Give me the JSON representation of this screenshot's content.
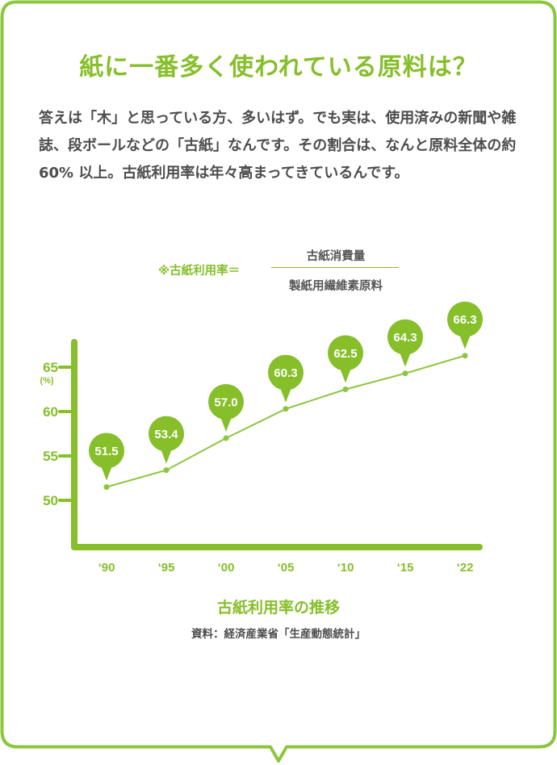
{
  "heading": "紙に一番多く使われている原料は？",
  "body_text": "答えは「木」と思っている方、多いはず。でも実は、使用済みの新聞や雑誌、段ボールなどの「古紙」なんです。その割合は、なんと原料全体の約 60% 以上。古紙利用率は年々高まってきているんです。",
  "formula": {
    "label": "※古紙利用率＝",
    "numerator": "古紙消費量",
    "denominator": "製紙用繊維素原料"
  },
  "caption": "古紙利用率の推移",
  "source": "資料：経済産業省「生産動態統計」",
  "colors": {
    "accent": "#86bf2a",
    "text": "#4d4d4d",
    "line": "#8cc63f"
  },
  "chart_data": {
    "type": "line",
    "title": "古紙利用率の推移",
    "categories": [
      "‘90",
      "‘95",
      "‘00",
      "‘05",
      "‘10",
      "‘15",
      "‘22"
    ],
    "values": [
      51.5,
      53.4,
      57.0,
      60.3,
      62.5,
      64.3,
      66.3
    ],
    "data_labels": [
      "51.5",
      "53.4",
      "57.0",
      "60.3",
      "62.5",
      "64.3",
      "66.3"
    ],
    "y_ticks": [
      "50",
      "55",
      "60",
      "65"
    ],
    "y_tick_values": [
      50,
      55,
      60,
      65
    ],
    "y_unit": "(%)",
    "ylim": [
      45,
      68
    ],
    "grid": false,
    "legend": "none"
  }
}
